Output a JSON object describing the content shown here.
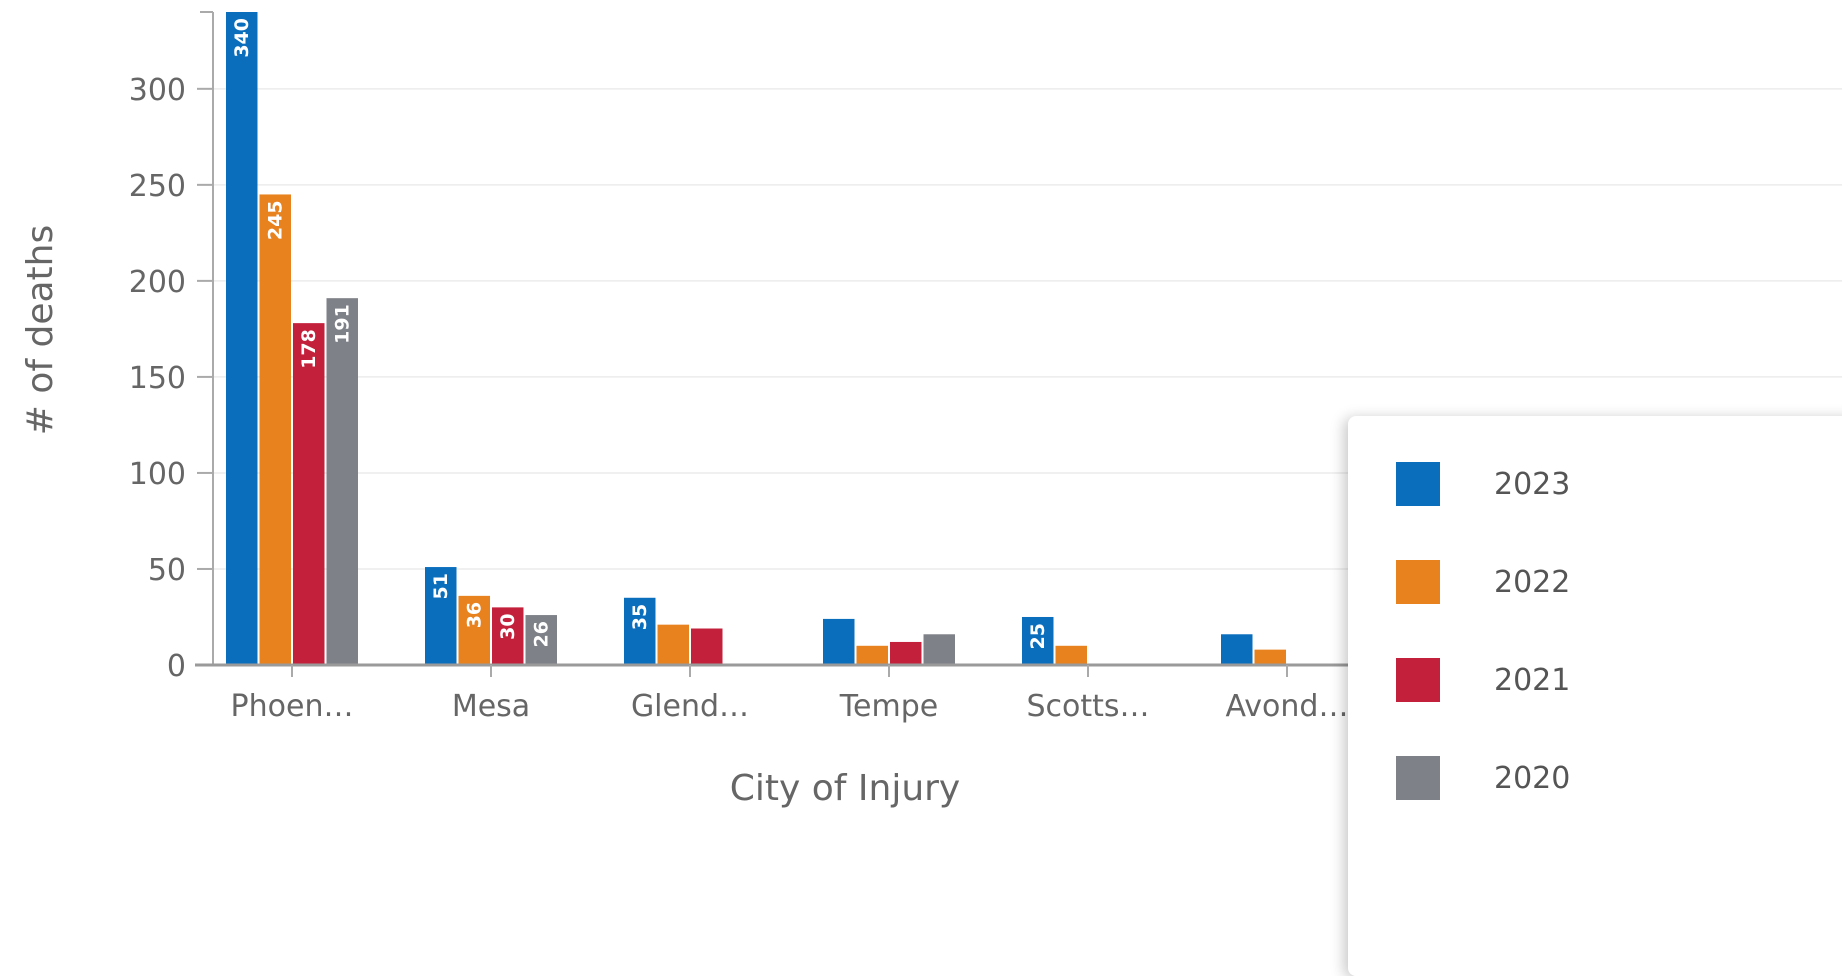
{
  "chart_data": {
    "type": "bar",
    "title": "",
    "xlabel": "City of Injury",
    "ylabel": "# of deaths",
    "ylim": [
      0,
      340
    ],
    "yticks": [
      0,
      50,
      100,
      150,
      200,
      250,
      300
    ],
    "grid": true,
    "legend_position": "right",
    "categories": [
      "Phoen…",
      "Mesa",
      "Glend…",
      "Tempe",
      "Scotts…",
      "Avond…"
    ],
    "series": [
      {
        "name": "2023",
        "color": "#0a6ebd",
        "values": [
          340,
          51,
          35,
          24,
          25,
          16
        ],
        "labels": [
          "340",
          "51",
          "35",
          "",
          "25",
          ""
        ]
      },
      {
        "name": "2022",
        "color": "#e8821e",
        "values": [
          245,
          36,
          21,
          10,
          10,
          8
        ],
        "labels": [
          "245",
          "36",
          "",
          "",
          "",
          ""
        ]
      },
      {
        "name": "2021",
        "color": "#c3203b",
        "values": [
          178,
          30,
          19,
          12,
          0,
          0
        ],
        "labels": [
          "178",
          "30",
          "",
          "",
          "",
          ""
        ]
      },
      {
        "name": "2020",
        "color": "#7e8188",
        "values": [
          191,
          26,
          0,
          16,
          0,
          0
        ],
        "labels": [
          "191",
          "26",
          "",
          "",
          "",
          ""
        ]
      }
    ]
  }
}
